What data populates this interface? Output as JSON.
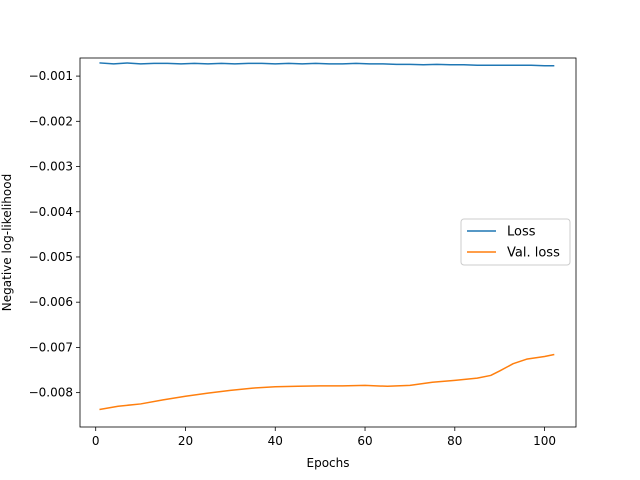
{
  "chart_data": {
    "type": "line",
    "title": "",
    "xlabel": "Epochs",
    "ylabel": "Negative log-likelihood",
    "xlim": [
      -3.5,
      107
    ],
    "ylim": [
      -0.00876,
      -0.0006
    ],
    "xticks": [
      0,
      20,
      40,
      60,
      80,
      100
    ],
    "xtick_labels": [
      "0",
      "20",
      "40",
      "60",
      "80",
      "100"
    ],
    "yticks": [
      -0.001,
      -0.002,
      -0.003,
      -0.004,
      -0.005,
      -0.006,
      -0.007,
      -0.008
    ],
    "ytick_labels": [
      "−0.001",
      "−0.002",
      "−0.003",
      "−0.004",
      "−0.005",
      "−0.006",
      "−0.007",
      "−0.008"
    ],
    "grid": false,
    "legend_position": "center-right",
    "series": [
      {
        "name": "Loss",
        "color": "#1f77b4",
        "x": [
          1,
          4,
          7,
          10,
          13,
          16,
          19,
          22,
          25,
          28,
          31,
          34,
          37,
          40,
          43,
          46,
          49,
          52,
          55,
          58,
          61,
          64,
          67,
          70,
          73,
          76,
          79,
          82,
          85,
          88,
          91,
          94,
          97,
          100,
          102
        ],
        "y": [
          -0.00071,
          -0.00073,
          -0.00071,
          -0.00073,
          -0.00072,
          -0.00072,
          -0.00073,
          -0.00072,
          -0.00073,
          -0.00072,
          -0.00073,
          -0.00072,
          -0.00072,
          -0.00073,
          -0.00072,
          -0.00073,
          -0.00072,
          -0.00073,
          -0.00073,
          -0.00072,
          -0.00073,
          -0.00073,
          -0.00074,
          -0.00074,
          -0.00075,
          -0.00074,
          -0.00075,
          -0.00075,
          -0.00076,
          -0.00076,
          -0.00076,
          -0.00076,
          -0.00076,
          -0.00077,
          -0.00077
        ]
      },
      {
        "name": "Val. loss",
        "color": "#ff7f0e",
        "x": [
          1,
          5,
          10,
          15,
          20,
          25,
          30,
          35,
          40,
          45,
          50,
          55,
          60,
          65,
          70,
          75,
          80,
          85,
          88,
          90,
          93,
          96,
          100,
          102
        ],
        "y": [
          -0.00837,
          -0.0083,
          -0.00825,
          -0.00816,
          -0.00808,
          -0.00801,
          -0.00795,
          -0.0079,
          -0.00787,
          -0.00786,
          -0.00785,
          -0.00785,
          -0.00784,
          -0.00786,
          -0.00784,
          -0.00777,
          -0.00773,
          -0.00768,
          -0.00762,
          -0.00752,
          -0.00736,
          -0.00726,
          -0.0072,
          -0.00716
        ]
      }
    ]
  }
}
